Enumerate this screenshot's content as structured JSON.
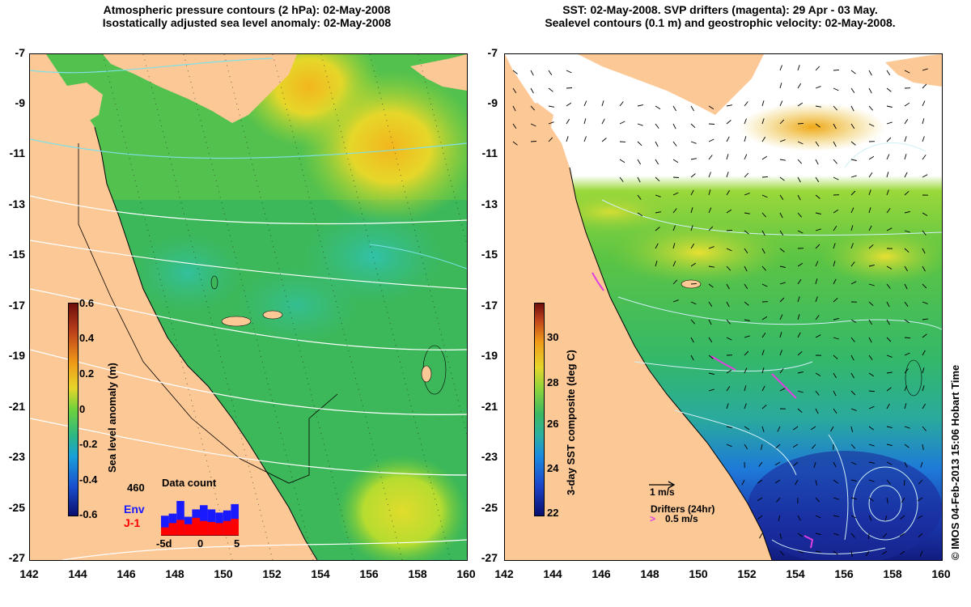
{
  "left_panel": {
    "title_line1": "Atmospheric pressure contours (2 hPa): 02-May-2008",
    "title_line2": "Isostatically adjusted sea level anomaly: 02-May-2008",
    "x_ticks": [
      "142",
      "144",
      "146",
      "148",
      "150",
      "152",
      "154",
      "156",
      "158",
      "160"
    ],
    "y_ticks": [
      "-7",
      "-9",
      "-11",
      "-13",
      "-15",
      "-17",
      "-19",
      "-21",
      "-23",
      "-25",
      "-27"
    ],
    "colorbar": {
      "label": "Sea level anomaly (m)",
      "ticks": [
        "0.6",
        "0.4",
        "0.2",
        "0",
        "-0.2",
        "-0.4",
        "-0.6"
      ]
    },
    "data_count": {
      "title": "Data count",
      "max_label": "460",
      "series": [
        {
          "name": "Env",
          "color": "#1a1aff",
          "values": [
            190,
            210,
            330,
            180,
            250,
            290,
            250,
            220,
            240,
            300
          ]
        },
        {
          "name": "J-1",
          "color": "#ff0000",
          "values": [
            80,
            120,
            150,
            110,
            170,
            140,
            130,
            120,
            140,
            160
          ]
        }
      ],
      "x_ticks": [
        "-5d",
        "0",
        "5"
      ],
      "ymax": 460
    }
  },
  "right_panel": {
    "title_line1": "SST: 02-May-2008. SVP drifters (magenta): 29 Apr - 03 May.",
    "title_line2": "Sealevel contours (0.1 m) and geostrophic velocity: 02-May-2008.",
    "x_ticks": [
      "142",
      "144",
      "146",
      "148",
      "150",
      "152",
      "154",
      "156",
      "158",
      "160"
    ],
    "y_ticks": [
      "-7",
      "-9",
      "-11",
      "-13",
      "-15",
      "-17",
      "-19",
      "-21",
      "-23",
      "-25",
      "-27"
    ],
    "colorbar": {
      "label": "3-day SST composite (deg C)",
      "ticks": [
        "30",
        "28",
        "26",
        "24",
        "22"
      ]
    },
    "velocity_scale_label": "1 m/s",
    "drifters_label": "Drifters (24hr)",
    "drifters_scale_label": "0.5 m/s"
  },
  "credit": "© IMOS 04-Feb-2013 15:06 Hobart Time",
  "colors": {
    "land": "#fcc896",
    "sea_green": "#38b85c",
    "sea_teal": "#2cb8a0",
    "sst_blue": "#1e64d2",
    "sst_yellow": "#e0e23a",
    "contour_white": "#ffffff",
    "contour_cyan": "#7fe0e8",
    "drifter_magenta": "#e040e0"
  }
}
